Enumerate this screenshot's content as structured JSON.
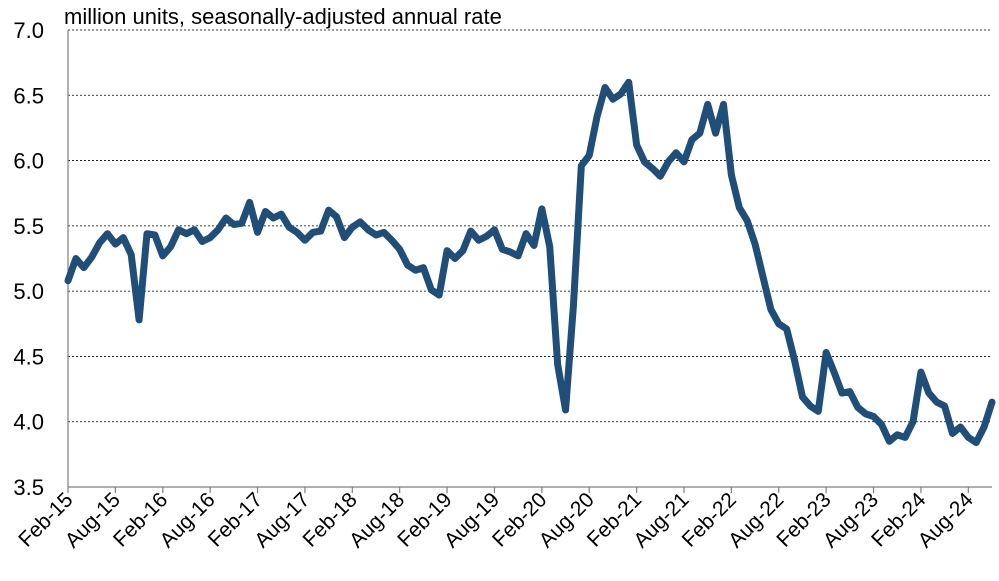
{
  "chart_data": {
    "type": "line",
    "title": "",
    "subtitle": "million units, seasonally-adjusted annual rate",
    "xlabel": "",
    "ylabel": "",
    "ylim": [
      3.5,
      7.0
    ],
    "yticks": [
      "3.5",
      "4.0",
      "4.5",
      "5.0",
      "5.5",
      "6.0",
      "6.5",
      "7.0"
    ],
    "xtick_labels": [
      "Feb-15",
      "Aug-15",
      "Feb-16",
      "Aug-16",
      "Feb-17",
      "Aug-17",
      "Feb-18",
      "Aug-18",
      "Feb-19",
      "Aug-19",
      "Feb-20",
      "Aug-20",
      "Feb-21",
      "Aug-21",
      "Feb-22",
      "Aug-22",
      "Feb-23",
      "Aug-23",
      "Feb-24",
      "Aug-24"
    ],
    "grid": "horizontal dashed",
    "line_color": "#1f4e79",
    "series": [
      {
        "start": "Feb-15",
        "frequency": "monthly",
        "values": [
          5.08,
          5.25,
          5.18,
          5.26,
          5.37,
          5.44,
          5.36,
          5.41,
          5.28,
          4.78,
          5.44,
          5.43,
          5.27,
          5.34,
          5.47,
          5.44,
          5.47,
          5.38,
          5.41,
          5.47,
          5.56,
          5.51,
          5.52,
          5.68,
          5.45,
          5.61,
          5.56,
          5.59,
          5.49,
          5.45,
          5.39,
          5.45,
          5.46,
          5.62,
          5.57,
          5.41,
          5.49,
          5.53,
          5.47,
          5.43,
          5.45,
          5.39,
          5.32,
          5.2,
          5.16,
          5.18,
          5.01,
          4.97,
          5.31,
          5.25,
          5.31,
          5.46,
          5.39,
          5.42,
          5.47,
          5.32,
          5.3,
          5.27,
          5.44,
          5.35,
          5.63,
          5.34,
          4.44,
          4.09,
          4.89,
          5.96,
          6.04,
          6.34,
          6.56,
          6.47,
          6.51,
          6.6,
          6.12,
          5.99,
          5.94,
          5.88,
          5.99,
          6.06,
          5.99,
          6.16,
          6.21,
          6.43,
          6.21,
          6.43,
          5.89,
          5.64,
          5.54,
          5.36,
          5.11,
          4.86,
          4.75,
          4.71,
          4.47,
          4.19,
          4.12,
          4.08,
          4.53,
          4.38,
          4.22,
          4.23,
          4.11,
          4.06,
          4.04,
          3.98,
          3.85,
          3.9,
          3.88,
          4.0,
          4.38,
          4.22,
          4.15,
          4.12,
          3.91,
          3.96,
          3.88,
          3.84,
          3.96,
          4.15
        ]
      }
    ]
  }
}
